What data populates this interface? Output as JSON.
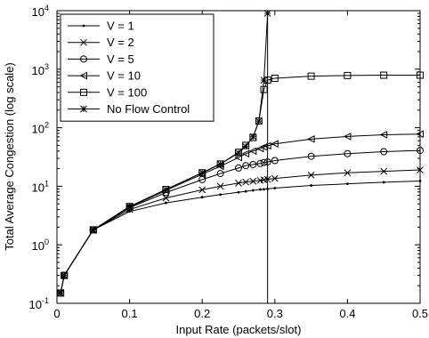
{
  "chart_data": {
    "type": "line",
    "title": "",
    "xlabel": "Input Rate (packets/slot)",
    "ylabel": "Total Average Congestion (log scale)",
    "xlim": [
      0,
      0.5
    ],
    "ylim": [
      0.1,
      10000
    ],
    "y_scale": "log",
    "grid": false,
    "legend_position": "top-left",
    "x_ticks": [
      0,
      0.1,
      0.2,
      0.3,
      0.4,
      0.5
    ],
    "x_tick_labels": [
      "0",
      "0.1",
      "0.2",
      "0.3",
      "0.4",
      "0.5"
    ],
    "y_ticks": [
      0.1,
      1,
      10,
      100,
      1000,
      10000
    ],
    "y_tick_labels": [
      {
        "base": "10",
        "exp": "-1"
      },
      {
        "base": "10",
        "exp": "0"
      },
      {
        "base": "10",
        "exp": "1"
      },
      {
        "base": "10",
        "exp": "2"
      },
      {
        "base": "10",
        "exp": "3"
      },
      {
        "base": "10",
        "exp": "4"
      }
    ],
    "vertical_line_x": 0.29,
    "series": [
      {
        "name": "V = 1",
        "marker": "dot",
        "x": [
          0.005,
          0.01,
          0.05,
          0.1,
          0.15,
          0.2,
          0.225,
          0.25,
          0.26,
          0.27,
          0.28,
          0.285,
          0.29,
          0.3,
          0.35,
          0.4,
          0.45,
          0.5
        ],
        "y": [
          0.15,
          0.3,
          1.8,
          3.7,
          5.2,
          6.5,
          7.2,
          7.9,
          8.2,
          8.5,
          8.8,
          8.9,
          9.0,
          9.3,
          10.3,
          11.0,
          11.7,
          12.3
        ]
      },
      {
        "name": "V = 2",
        "marker": "x",
        "x": [
          0.005,
          0.01,
          0.05,
          0.1,
          0.15,
          0.2,
          0.225,
          0.25,
          0.26,
          0.27,
          0.28,
          0.285,
          0.29,
          0.3,
          0.35,
          0.4,
          0.45,
          0.5
        ],
        "y": [
          0.15,
          0.3,
          1.8,
          4.0,
          6.3,
          8.7,
          10.0,
          11.3,
          11.8,
          12.2,
          12.6,
          12.9,
          13.1,
          13.6,
          15.5,
          17.0,
          18.0,
          19.0
        ]
      },
      {
        "name": "V = 5",
        "marker": "circle",
        "x": [
          0.005,
          0.01,
          0.05,
          0.1,
          0.15,
          0.2,
          0.225,
          0.25,
          0.26,
          0.27,
          0.28,
          0.285,
          0.29,
          0.3,
          0.35,
          0.4,
          0.45,
          0.5
        ],
        "y": [
          0.15,
          0.3,
          1.8,
          4.3,
          7.8,
          13.0,
          16.5,
          20.5,
          22.5,
          23.5,
          24.5,
          25.5,
          26.0,
          27.5,
          32.5,
          36.0,
          39.0,
          41.0
        ]
      },
      {
        "name": "V = 10",
        "marker": "triangle-left",
        "x": [
          0.005,
          0.01,
          0.05,
          0.1,
          0.15,
          0.2,
          0.225,
          0.25,
          0.26,
          0.27,
          0.28,
          0.285,
          0.29,
          0.3,
          0.35,
          0.4,
          0.45,
          0.5
        ],
        "y": [
          0.15,
          0.3,
          1.8,
          4.4,
          8.5,
          16.0,
          22.0,
          31.0,
          36.0,
          40.0,
          44.0,
          47.0,
          49.0,
          53.0,
          64.0,
          71.0,
          76.0,
          78.0
        ]
      },
      {
        "name": "V = 100",
        "marker": "square",
        "x": [
          0.005,
          0.01,
          0.05,
          0.1,
          0.15,
          0.2,
          0.225,
          0.25,
          0.26,
          0.27,
          0.278,
          0.285,
          0.29,
          0.3,
          0.35,
          0.4,
          0.45,
          0.5
        ],
        "y": [
          0.15,
          0.3,
          1.8,
          4.5,
          8.8,
          17.0,
          24.0,
          38.0,
          50.0,
          68.0,
          130.0,
          450.0,
          650.0,
          700.0,
          760.0,
          780.0,
          790.0,
          790.0
        ]
      },
      {
        "name": "No Flow Control",
        "marker": "star",
        "x": [
          0.005,
          0.01,
          0.05,
          0.1,
          0.15,
          0.2,
          0.225,
          0.25,
          0.26,
          0.27,
          0.278,
          0.285,
          0.29
        ],
        "y": [
          0.15,
          0.3,
          1.8,
          4.5,
          8.8,
          17.0,
          24.0,
          37.0,
          48.0,
          70.0,
          130.0,
          650.0,
          9000.0
        ]
      }
    ]
  }
}
